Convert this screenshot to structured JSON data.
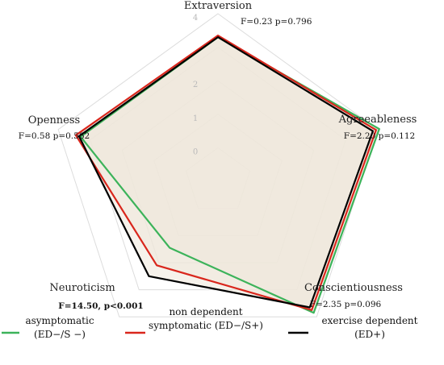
{
  "chart_data": {
    "type": "radar",
    "axes": [
      {
        "label": "Extraversion",
        "stat": "F=0.23 p=0.796",
        "stat_bold": false
      },
      {
        "label": "Agreeableness",
        "stat": "F=2.20 p=0.112",
        "stat_bold": false
      },
      {
        "label": "Conscientiousness",
        "stat": "F=2.35 p=0.096",
        "stat_bold": false
      },
      {
        "label": "Neuroticism",
        "stat": "F=14.50, p<0.001",
        "stat_bold": true
      },
      {
        "label": "Openness",
        "stat": "F=0.58 p=0.562",
        "stat_bold": false
      }
    ],
    "r_ticks": [
      0,
      1,
      2,
      3,
      4
    ],
    "r_tick_labels": [
      "0",
      "1",
      "2",
      "",
      "4"
    ],
    "rlim": [
      -1,
      4
    ],
    "series": [
      {
        "name": "asymptomatic\n(ED−/S −)",
        "color": "#3cb35a",
        "values": [
          3.3,
          4.05,
          3.85,
          1.45,
          3.3
        ]
      },
      {
        "name": "non dependent\nsymptomatic (ED−/S+)",
        "color": "#d9261c",
        "values": [
          3.35,
          3.95,
          3.75,
          2.1,
          3.45
        ]
      },
      {
        "name": "exercise dependent\n(ED+)",
        "color": "#000000",
        "values": [
          3.3,
          3.85,
          3.65,
          2.5,
          3.35
        ]
      }
    ],
    "fill_color": "#efe8da",
    "grid": true,
    "legend_position": "bottom"
  }
}
